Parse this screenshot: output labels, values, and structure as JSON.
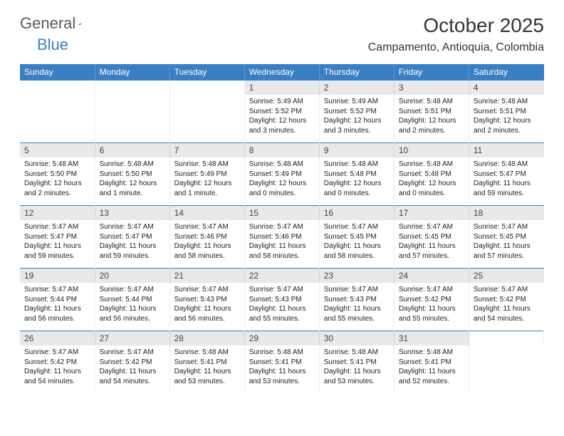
{
  "logo": {
    "word1": "General",
    "word2": "Blue"
  },
  "title": "October 2025",
  "location": "Campamento, Antioquia, Colombia",
  "colors": {
    "header_bg": "#3a7fc4",
    "daynum_bg": "#e9e9e9",
    "week_border": "#3a7fc4",
    "logo_gray": "#5a5a5a",
    "logo_blue": "#3a7fc4"
  },
  "dow": [
    "Sunday",
    "Monday",
    "Tuesday",
    "Wednesday",
    "Thursday",
    "Friday",
    "Saturday"
  ],
  "weeks": [
    [
      null,
      null,
      null,
      {
        "n": "1",
        "sunrise": "5:49 AM",
        "sunset": "5:52 PM",
        "daylight": "12 hours and 3 minutes."
      },
      {
        "n": "2",
        "sunrise": "5:49 AM",
        "sunset": "5:52 PM",
        "daylight": "12 hours and 3 minutes."
      },
      {
        "n": "3",
        "sunrise": "5:48 AM",
        "sunset": "5:51 PM",
        "daylight": "12 hours and 2 minutes."
      },
      {
        "n": "4",
        "sunrise": "5:48 AM",
        "sunset": "5:51 PM",
        "daylight": "12 hours and 2 minutes."
      }
    ],
    [
      {
        "n": "5",
        "sunrise": "5:48 AM",
        "sunset": "5:50 PM",
        "daylight": "12 hours and 2 minutes."
      },
      {
        "n": "6",
        "sunrise": "5:48 AM",
        "sunset": "5:50 PM",
        "daylight": "12 hours and 1 minute."
      },
      {
        "n": "7",
        "sunrise": "5:48 AM",
        "sunset": "5:49 PM",
        "daylight": "12 hours and 1 minute."
      },
      {
        "n": "8",
        "sunrise": "5:48 AM",
        "sunset": "5:49 PM",
        "daylight": "12 hours and 0 minutes."
      },
      {
        "n": "9",
        "sunrise": "5:48 AM",
        "sunset": "5:48 PM",
        "daylight": "12 hours and 0 minutes."
      },
      {
        "n": "10",
        "sunrise": "5:48 AM",
        "sunset": "5:48 PM",
        "daylight": "12 hours and 0 minutes."
      },
      {
        "n": "11",
        "sunrise": "5:48 AM",
        "sunset": "5:47 PM",
        "daylight": "11 hours and 59 minutes."
      }
    ],
    [
      {
        "n": "12",
        "sunrise": "5:47 AM",
        "sunset": "5:47 PM",
        "daylight": "11 hours and 59 minutes."
      },
      {
        "n": "13",
        "sunrise": "5:47 AM",
        "sunset": "5:47 PM",
        "daylight": "11 hours and 59 minutes."
      },
      {
        "n": "14",
        "sunrise": "5:47 AM",
        "sunset": "5:46 PM",
        "daylight": "11 hours and 58 minutes."
      },
      {
        "n": "15",
        "sunrise": "5:47 AM",
        "sunset": "5:46 PM",
        "daylight": "11 hours and 58 minutes."
      },
      {
        "n": "16",
        "sunrise": "5:47 AM",
        "sunset": "5:45 PM",
        "daylight": "11 hours and 58 minutes."
      },
      {
        "n": "17",
        "sunrise": "5:47 AM",
        "sunset": "5:45 PM",
        "daylight": "11 hours and 57 minutes."
      },
      {
        "n": "18",
        "sunrise": "5:47 AM",
        "sunset": "5:45 PM",
        "daylight": "11 hours and 57 minutes."
      }
    ],
    [
      {
        "n": "19",
        "sunrise": "5:47 AM",
        "sunset": "5:44 PM",
        "daylight": "11 hours and 56 minutes."
      },
      {
        "n": "20",
        "sunrise": "5:47 AM",
        "sunset": "5:44 PM",
        "daylight": "11 hours and 56 minutes."
      },
      {
        "n": "21",
        "sunrise": "5:47 AM",
        "sunset": "5:43 PM",
        "daylight": "11 hours and 56 minutes."
      },
      {
        "n": "22",
        "sunrise": "5:47 AM",
        "sunset": "5:43 PM",
        "daylight": "11 hours and 55 minutes."
      },
      {
        "n": "23",
        "sunrise": "5:47 AM",
        "sunset": "5:43 PM",
        "daylight": "11 hours and 55 minutes."
      },
      {
        "n": "24",
        "sunrise": "5:47 AM",
        "sunset": "5:42 PM",
        "daylight": "11 hours and 55 minutes."
      },
      {
        "n": "25",
        "sunrise": "5:47 AM",
        "sunset": "5:42 PM",
        "daylight": "11 hours and 54 minutes."
      }
    ],
    [
      {
        "n": "26",
        "sunrise": "5:47 AM",
        "sunset": "5:42 PM",
        "daylight": "11 hours and 54 minutes."
      },
      {
        "n": "27",
        "sunrise": "5:47 AM",
        "sunset": "5:42 PM",
        "daylight": "11 hours and 54 minutes."
      },
      {
        "n": "28",
        "sunrise": "5:48 AM",
        "sunset": "5:41 PM",
        "daylight": "11 hours and 53 minutes."
      },
      {
        "n": "29",
        "sunrise": "5:48 AM",
        "sunset": "5:41 PM",
        "daylight": "11 hours and 53 minutes."
      },
      {
        "n": "30",
        "sunrise": "5:48 AM",
        "sunset": "5:41 PM",
        "daylight": "11 hours and 53 minutes."
      },
      {
        "n": "31",
        "sunrise": "5:48 AM",
        "sunset": "5:41 PM",
        "daylight": "11 hours and 52 minutes."
      },
      null
    ]
  ],
  "labels": {
    "sunrise": "Sunrise:",
    "sunset": "Sunset:",
    "daylight": "Daylight:"
  }
}
